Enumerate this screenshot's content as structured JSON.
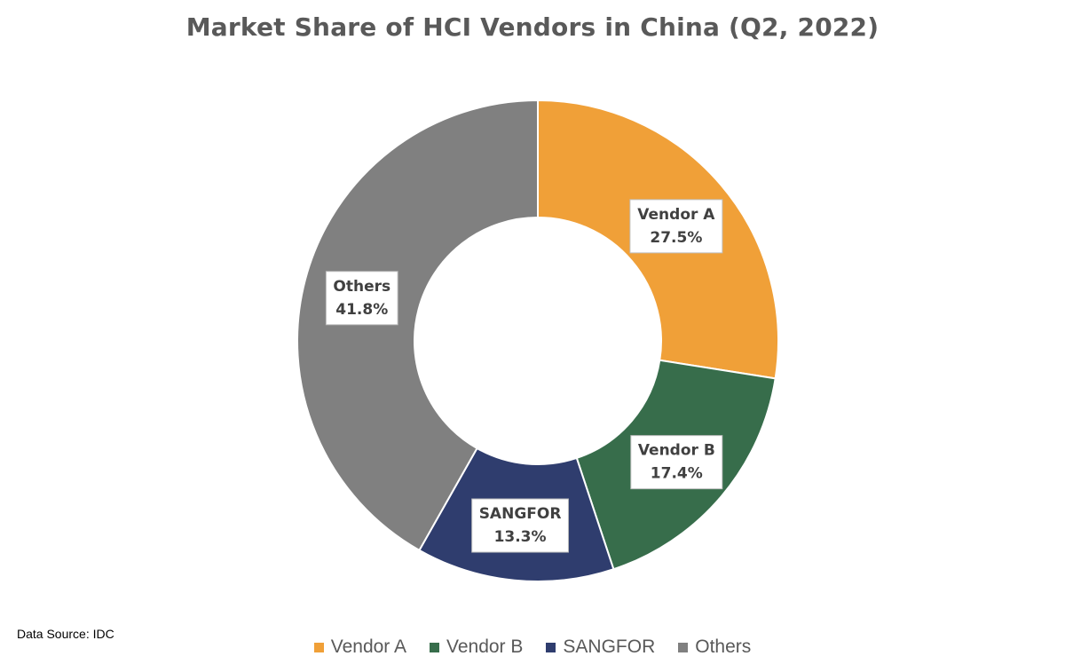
{
  "chart_data": {
    "type": "pie",
    "title": "Market Share of HCI Vendors in China (Q2, 2022)",
    "categories": [
      "Vendor A",
      "Vendor B",
      "SANGFOR",
      "Others"
    ],
    "values": [
      27.5,
      17.4,
      13.3,
      41.8
    ],
    "value_labels": [
      "27.5%",
      "17.4%",
      "13.3%",
      "41.8%"
    ],
    "colors": [
      "#f0a038",
      "#376d4b",
      "#2f3d6e",
      "#808080"
    ],
    "donut": true,
    "legend_position": "bottom",
    "source_note": "Data Source: IDC"
  }
}
